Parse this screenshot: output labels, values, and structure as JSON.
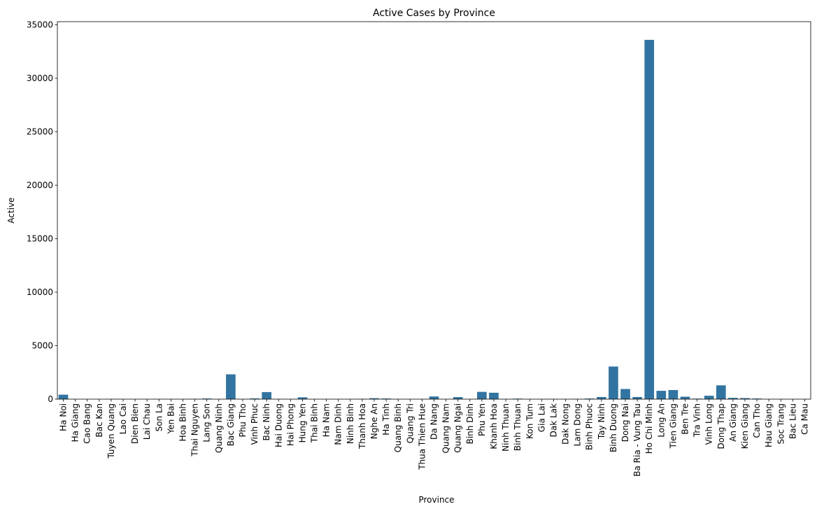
{
  "chart_data": {
    "type": "bar",
    "title": "Active Cases by Province",
    "xlabel": "Province",
    "ylabel": "Active",
    "ylim": [
      0,
      35300
    ],
    "yticks": [
      0,
      5000,
      10000,
      15000,
      20000,
      25000,
      30000,
      35000
    ],
    "grid": false,
    "bar_color": "#3274a1",
    "categories": [
      "Ha Noi",
      "Ha Giang",
      "Cao Bang",
      "Bac Kan",
      "Tuyen Quang",
      "Lao Cai",
      "Dien Bien",
      "Lai Chau",
      "Son La",
      "Yen Bai",
      "Hoa Binh",
      "Thai Nguyen",
      "Lang Son",
      "Quang Ninh",
      "Bac Giang",
      "Phu Tho",
      "Vinh Phuc",
      "Bac Ninh",
      "Hai Duong",
      "Hai Phong",
      "Hung Yen",
      "Thai Binh",
      "Ha Nam",
      "Nam Dinh",
      "Ninh Binh",
      "Thanh Hoa",
      "Nghe An",
      "Ha Tinh",
      "Quang Binh",
      "Quang Tri",
      "Thua Thien Hue",
      "Da Nang",
      "Quang Nam",
      "Quang Ngai",
      "Binh Dinh",
      "Phu Yen",
      "Khanh Hoa",
      "Ninh Thuan",
      "Binh Thuan",
      "Kon Tum",
      "Gia Lai",
      "Dak Lak",
      "Dak Nong",
      "Lam Dong",
      "Binh Phuoc",
      "Tay Ninh",
      "Binh Duong",
      "Dong Nai",
      "Ba Ria - Vung Tau",
      "Ho Chi Minh",
      "Long An",
      "Tien Giang",
      "Ben Tre",
      "Tra Vinh",
      "Vinh Long",
      "Dong Thap",
      "An Giang",
      "Kien Giang",
      "Can Tho",
      "Hau Giang",
      "Soc Trang",
      "Bac Lieu",
      "Ca Mau"
    ],
    "values": [
      420,
      10,
      5,
      5,
      20,
      10,
      5,
      5,
      15,
      10,
      10,
      30,
      60,
      10,
      2320,
      20,
      70,
      660,
      20,
      10,
      170,
      10,
      10,
      10,
      10,
      30,
      90,
      60,
      10,
      10,
      10,
      250,
      10,
      190,
      10,
      680,
      600,
      20,
      50,
      10,
      10,
      20,
      10,
      30,
      60,
      200,
      3050,
      950,
      200,
      33600,
      780,
      850,
      230,
      50,
      320,
      1290,
      120,
      100,
      60,
      10,
      10,
      10,
      5
    ]
  }
}
